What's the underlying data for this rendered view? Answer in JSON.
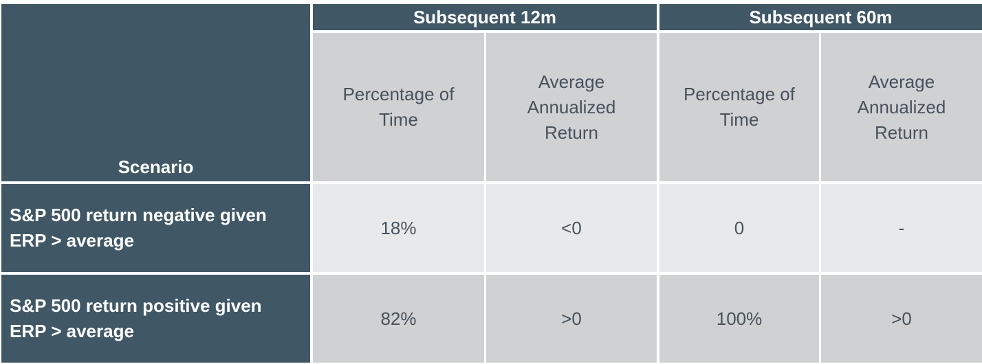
{
  "header": {
    "scenario": "Scenario",
    "groups": [
      "Subsequent 12m",
      "Subsequent 60m"
    ],
    "columns": [
      "Percentage of Time",
      "Average Annualized Return",
      "Percentage of Time",
      "Average Annualized Return"
    ]
  },
  "rows": [
    {
      "scenario": "S&P 500 return negative given ERP > average",
      "values": [
        "18%",
        "<0",
        "0",
        "-"
      ]
    },
    {
      "scenario": "S&P 500 return positive given ERP > average",
      "values": [
        "82%",
        ">0",
        "100%",
        ">0"
      ]
    }
  ]
}
